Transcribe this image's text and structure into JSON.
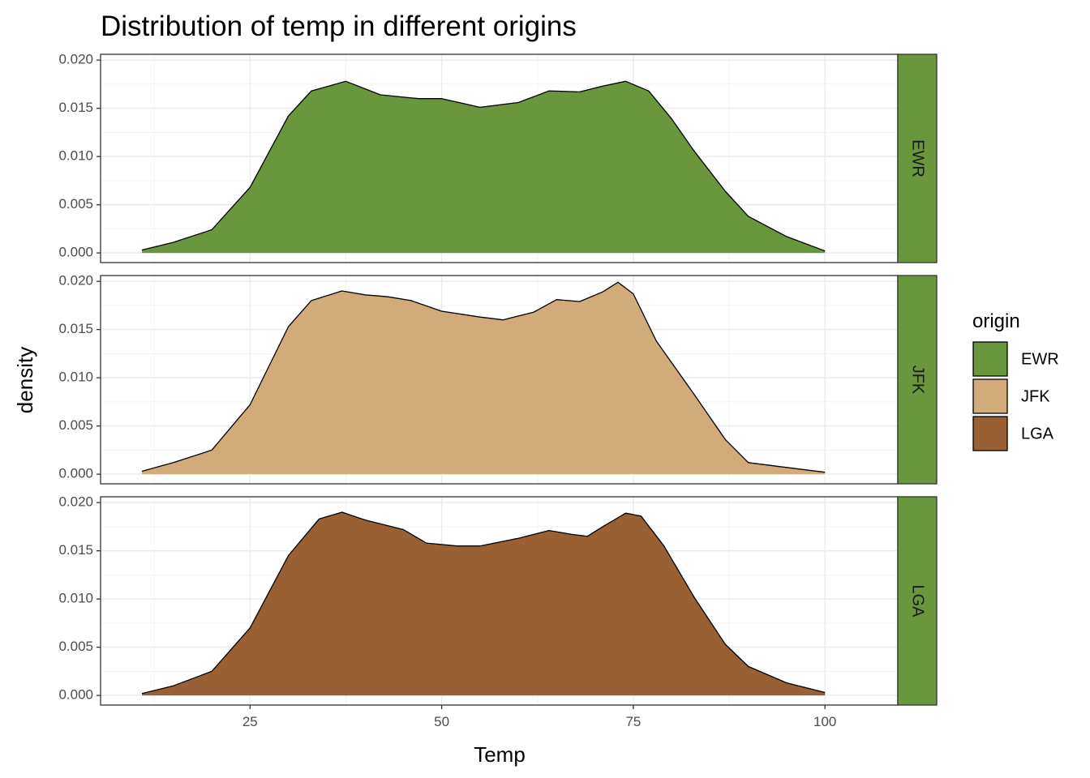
{
  "chart_data": {
    "type": "area",
    "title": "Distribution of temp in different origins",
    "xlabel": "Temp",
    "ylabel": "density",
    "xlim": [
      5.5,
      109.5
    ],
    "ylim": [
      -0.001,
      0.0206
    ],
    "x_ticks": [
      25,
      50,
      75,
      100
    ],
    "x_tick_labels": [
      "25",
      "50",
      "75",
      "100"
    ],
    "y_ticks": [
      0,
      0.005,
      0.01,
      0.015,
      0.02
    ],
    "y_tick_labels": [
      "0.000",
      "0.005",
      "0.010",
      "0.015",
      "0.020"
    ],
    "grid": true,
    "facet": "rows",
    "legend": {
      "title": "origin",
      "position": "right"
    },
    "series": [
      {
        "name": "EWR",
        "color": "#6a963e",
        "x": [
          10.9,
          15,
          20,
          25,
          30,
          33,
          37.5,
          42,
          47,
          50,
          55,
          60,
          64,
          68,
          71,
          74,
          77,
          80,
          83,
          87,
          90,
          95,
          100
        ],
        "y": [
          0.0003,
          0.0011,
          0.0024,
          0.0068,
          0.0142,
          0.0168,
          0.0178,
          0.0164,
          0.016,
          0.016,
          0.0151,
          0.0156,
          0.0168,
          0.0167,
          0.0173,
          0.0178,
          0.0168,
          0.0139,
          0.0105,
          0.0064,
          0.0038,
          0.0017,
          0.0002
        ]
      },
      {
        "name": "JFK",
        "color": "#d2ab7b",
        "x": [
          10.9,
          15,
          20,
          25,
          30,
          33,
          37,
          40,
          43,
          46,
          50,
          55,
          58,
          62,
          65,
          68,
          71,
          73,
          75,
          78,
          83,
          87,
          90,
          95,
          100
        ],
        "y": [
          0.0003,
          0.0012,
          0.0025,
          0.0072,
          0.0153,
          0.018,
          0.019,
          0.0186,
          0.0184,
          0.018,
          0.0169,
          0.0163,
          0.016,
          0.0168,
          0.0181,
          0.0179,
          0.0189,
          0.0199,
          0.0187,
          0.0138,
          0.0082,
          0.0036,
          0.0012,
          0.0007,
          0.0002
        ]
      },
      {
        "name": "LGA",
        "color": "#996133",
        "x": [
          10.9,
          15,
          20,
          25,
          30,
          34,
          37,
          40,
          45,
          48,
          52,
          55,
          60,
          64,
          67,
          69,
          71,
          74,
          76,
          79,
          83,
          87,
          90,
          95,
          100
        ],
        "y": [
          0.0002,
          0.001,
          0.0025,
          0.007,
          0.0145,
          0.0183,
          0.019,
          0.0182,
          0.0172,
          0.0158,
          0.0155,
          0.0155,
          0.0163,
          0.0171,
          0.0167,
          0.0165,
          0.0175,
          0.0189,
          0.0186,
          0.0155,
          0.0101,
          0.0053,
          0.003,
          0.0013,
          0.0003
        ]
      }
    ]
  },
  "strip_color": "#6a963e"
}
